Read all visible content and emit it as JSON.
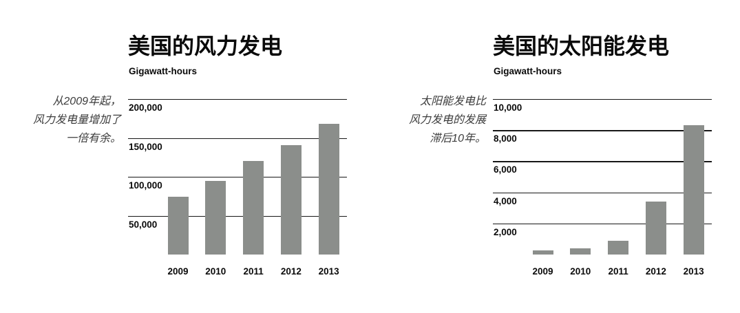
{
  "page": {
    "background": "#ffffff",
    "colors": {
      "bar": "#8b8e8b",
      "gridline": "#161616",
      "label_text": "#0a0a0a",
      "annotation_text": "#3c3c3c"
    }
  },
  "chart_data": [
    {
      "type": "bar",
      "title": "美国的风力发电",
      "ylabel": "Gigawatt-hours",
      "annotation_text": "从2009年起，风力发电量增加了一倍有余。",
      "annotation_lines": [
        "从2009年起，",
        "风力发电量增加了",
        "一倍有余。"
      ],
      "categories": [
        "2009",
        "2010",
        "2011",
        "2012",
        "2013"
      ],
      "values": [
        74000,
        95000,
        120000,
        141000,
        168000
      ],
      "ylim": [
        0,
        200000
      ],
      "gridline_values": [
        50000,
        100000,
        150000,
        200000
      ],
      "gridline_labels": [
        "50,000",
        "100,000",
        "150,000",
        "200,000"
      ],
      "grid": true,
      "legend": "none",
      "bar_color": "#8b8e8b"
    },
    {
      "type": "bar",
      "title": "美国的太阳能发电",
      "ylabel": "Gigawatt-hours",
      "annotation_text": "太阳能发电比风力发电的发展滞后10年。",
      "annotation_lines": [
        "太阳能发电比",
        "风力发电的发展",
        "滞后10年。"
      ],
      "categories": [
        "2009",
        "2010",
        "2011",
        "2012",
        "2013"
      ],
      "values": [
        250,
        400,
        900,
        3400,
        8300
      ],
      "ylim": [
        0,
        10000
      ],
      "gridline_values": [
        2000,
        4000,
        6000,
        8000,
        10000
      ],
      "gridline_labels": [
        "2,000",
        "4,000",
        "6,000",
        "8,000",
        "10,000"
      ],
      "grid": true,
      "legend": "none",
      "bar_color": "#8b8e8b"
    }
  ]
}
